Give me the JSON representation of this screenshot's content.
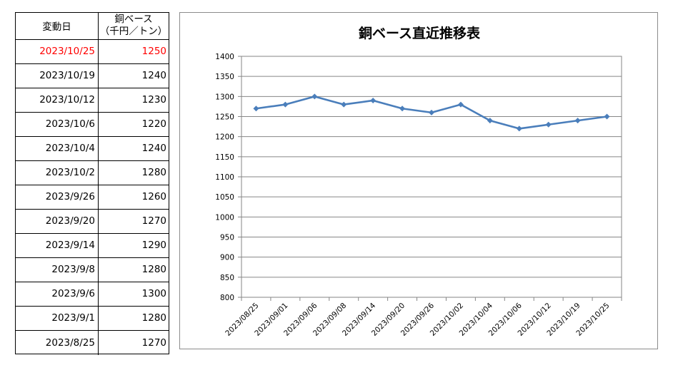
{
  "table": {
    "header": {
      "date": "変動日",
      "price_line1": "銅ベース",
      "price_line2": "（千円／トン）"
    },
    "highlight_color": "#ff0000",
    "rows": [
      {
        "date": "2023/10/25",
        "price": "1250",
        "highlight": true
      },
      {
        "date": "2023/10/19",
        "price": "1240"
      },
      {
        "date": "2023/10/12",
        "price": "1230"
      },
      {
        "date": "2023/10/6",
        "price": "1220"
      },
      {
        "date": "2023/10/4",
        "price": "1240"
      },
      {
        "date": "2023/10/2",
        "price": "1280"
      },
      {
        "date": "2023/9/26",
        "price": "1260"
      },
      {
        "date": "2023/9/20",
        "price": "1270"
      },
      {
        "date": "2023/9/14",
        "price": "1290"
      },
      {
        "date": "2023/9/8",
        "price": "1280"
      },
      {
        "date": "2023/9/6",
        "price": "1300"
      },
      {
        "date": "2023/9/1",
        "price": "1280"
      },
      {
        "date": "2023/8/25",
        "price": "1270"
      }
    ]
  },
  "chart_data": {
    "type": "line",
    "title": "銅ベース直近推移表",
    "xlabel": "",
    "ylabel": "",
    "x": [
      "2023/08/25",
      "2023/09/01",
      "2023/09/06",
      "2023/09/08",
      "2023/09/14",
      "2023/09/20",
      "2023/09/26",
      "2023/10/02",
      "2023/10/04",
      "2023/10/06",
      "2023/10/12",
      "2023/10/19",
      "2023/10/25"
    ],
    "values": [
      1270,
      1280,
      1300,
      1280,
      1290,
      1270,
      1260,
      1280,
      1240,
      1220,
      1230,
      1240,
      1250
    ],
    "ylim": [
      800,
      1400
    ],
    "yticks": [
      800,
      850,
      900,
      950,
      1000,
      1050,
      1100,
      1150,
      1200,
      1250,
      1300,
      1350,
      1400
    ],
    "grid": true,
    "line_color": "#4a7ebb",
    "grid_color": "#868686"
  }
}
